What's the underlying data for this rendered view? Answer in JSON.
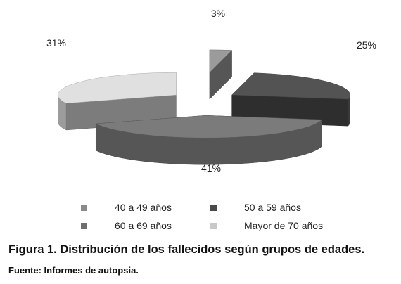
{
  "chart_data": {
    "type": "pie",
    "style": "3d-exploded",
    "categories": [
      "40 a 49 años",
      "50 a 59 años",
      "60 a 69 años",
      "Mayor de 70 años"
    ],
    "values": [
      3,
      25,
      41,
      31
    ],
    "value_labels": [
      "3%",
      "25%",
      "41%",
      "31%"
    ],
    "colors": [
      "#8a8a8a",
      "#4a4a4a",
      "#6e6e6e",
      "#c8c8c8"
    ],
    "legend_position": "bottom"
  },
  "caption": "Figura 1. Distribución de los fallecidos según grupos de edades.",
  "source": "Fuente: Informes de autopsia."
}
